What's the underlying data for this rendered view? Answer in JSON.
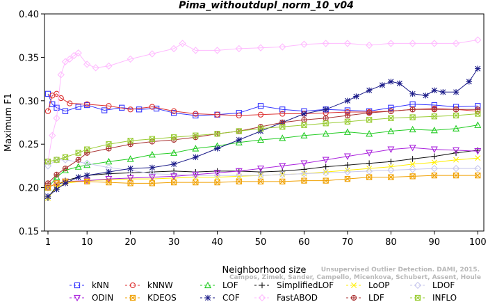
{
  "chart_data": {
    "type": "line",
    "title": "Pima_withoutdupl_norm_10_v04",
    "xlabel": "Neighborhood size",
    "ylabel": "Maximum F1",
    "xlim": [
      1,
      100
    ],
    "ylim": [
      0.15,
      0.4
    ],
    "x_ticks": [
      1,
      10,
      20,
      30,
      40,
      50,
      60,
      70,
      80,
      90,
      100
    ],
    "y_ticks": [
      0.15,
      0.2,
      0.25,
      0.3,
      0.35,
      0.4
    ],
    "x_tick_labels": [
      "1",
      "10",
      "20",
      "30",
      "40",
      "50",
      "60",
      "70",
      "80",
      "90",
      "100"
    ],
    "y_tick_labels": [
      "0.15",
      "0.20",
      "0.25",
      "0.30",
      "0.35",
      "0.40"
    ],
    "legend_position": "bottom",
    "watermark_lines": [
      "Unsupervised Outlier Detection. DAMI, 2015.",
      "Campos, Zimek, Sander, Campello, Micenkova, Schubert, Assent, Houle"
    ],
    "series": [
      {
        "name": "kNN",
        "color": "#3333ff",
        "marker": "square",
        "x": [
          1,
          2,
          3,
          5,
          8,
          10,
          14,
          18,
          22,
          26,
          30,
          35,
          40,
          45,
          50,
          55,
          60,
          65,
          70,
          75,
          80,
          85,
          90,
          95,
          100
        ],
        "y": [
          0.308,
          0.296,
          0.292,
          0.288,
          0.293,
          0.295,
          0.289,
          0.292,
          0.29,
          0.291,
          0.286,
          0.283,
          0.284,
          0.286,
          0.294,
          0.29,
          0.288,
          0.29,
          0.289,
          0.288,
          0.292,
          0.296,
          0.295,
          0.293,
          0.294
        ]
      },
      {
        "name": "kNNW",
        "color": "#dd3333",
        "marker": "circle",
        "x": [
          1,
          2,
          3,
          4,
          6,
          10,
          15,
          20,
          25,
          30,
          35,
          40,
          45,
          50,
          55,
          60,
          65,
          70,
          75,
          80,
          85,
          90,
          95,
          100
        ],
        "y": [
          0.288,
          0.306,
          0.308,
          0.303,
          0.297,
          0.296,
          0.294,
          0.29,
          0.293,
          0.288,
          0.285,
          0.284,
          0.283,
          0.284,
          0.285,
          0.285,
          0.286,
          0.287,
          0.287,
          0.288,
          0.29,
          0.291,
          0.29,
          0.288
        ]
      },
      {
        "name": "LOF",
        "color": "#22cc22",
        "marker": "triangle-up",
        "x": [
          1,
          3,
          5,
          8,
          10,
          15,
          20,
          25,
          30,
          35,
          40,
          45,
          50,
          55,
          60,
          65,
          70,
          75,
          80,
          85,
          90,
          95,
          100
        ],
        "y": [
          0.2,
          0.212,
          0.22,
          0.224,
          0.226,
          0.23,
          0.233,
          0.238,
          0.24,
          0.245,
          0.248,
          0.252,
          0.255,
          0.257,
          0.26,
          0.262,
          0.264,
          0.262,
          0.265,
          0.267,
          0.266,
          0.268,
          0.272
        ]
      },
      {
        "name": "SimplifiedLOF",
        "color": "#111111",
        "marker": "plus",
        "x": [
          1,
          3,
          5,
          8,
          10,
          15,
          20,
          25,
          30,
          35,
          40,
          45,
          50,
          55,
          60,
          65,
          70,
          75,
          80,
          85,
          90,
          95,
          100
        ],
        "y": [
          0.188,
          0.202,
          0.208,
          0.212,
          0.214,
          0.216,
          0.217,
          0.218,
          0.219,
          0.218,
          0.219,
          0.219,
          0.218,
          0.219,
          0.221,
          0.224,
          0.226,
          0.228,
          0.23,
          0.233,
          0.236,
          0.24,
          0.243
        ]
      },
      {
        "name": "LoOP",
        "color": "#ffee00",
        "marker": "cross",
        "x": [
          1,
          3,
          5,
          10,
          15,
          20,
          25,
          30,
          35,
          40,
          45,
          50,
          55,
          60,
          65,
          70,
          75,
          80,
          85,
          90,
          95,
          100
        ],
        "y": [
          0.188,
          0.2,
          0.205,
          0.208,
          0.209,
          0.21,
          0.21,
          0.211,
          0.212,
          0.212,
          0.213,
          0.214,
          0.215,
          0.216,
          0.218,
          0.22,
          0.222,
          0.224,
          0.227,
          0.229,
          0.232,
          0.234
        ]
      },
      {
        "name": "LDOF",
        "color": "#c8c8ee",
        "marker": "diamond",
        "x": [
          1,
          3,
          5,
          10,
          15,
          20,
          25,
          30,
          35,
          40,
          45,
          50,
          55,
          60,
          65,
          70,
          75,
          80,
          85,
          90,
          95,
          100
        ],
        "y": [
          0.225,
          0.232,
          0.232,
          0.228,
          0.223,
          0.22,
          0.216,
          0.215,
          0.214,
          0.214,
          0.214,
          0.214,
          0.215,
          0.216,
          0.217,
          0.218,
          0.219,
          0.22,
          0.221,
          0.222,
          0.222,
          0.222
        ]
      },
      {
        "name": "ODIN",
        "color": "#aa22dd",
        "marker": "triangle-down",
        "x": [
          1,
          3,
          5,
          10,
          15,
          20,
          25,
          30,
          35,
          40,
          45,
          50,
          55,
          60,
          65,
          70,
          75,
          80,
          85,
          90,
          95,
          100
        ],
        "y": [
          0.2,
          0.205,
          0.207,
          0.208,
          0.21,
          0.211,
          0.212,
          0.213,
          0.215,
          0.217,
          0.219,
          0.222,
          0.225,
          0.228,
          0.232,
          0.236,
          0.24,
          0.244,
          0.246,
          0.244,
          0.243,
          0.242
        ]
      },
      {
        "name": "KDEOS",
        "color": "#f0a000",
        "marker": "square-x",
        "x": [
          1,
          3,
          5,
          10,
          15,
          20,
          25,
          30,
          35,
          40,
          45,
          50,
          55,
          60,
          65,
          70,
          75,
          80,
          85,
          90,
          95,
          100
        ],
        "y": [
          0.2,
          0.205,
          0.207,
          0.207,
          0.206,
          0.205,
          0.205,
          0.206,
          0.206,
          0.206,
          0.207,
          0.207,
          0.207,
          0.208,
          0.208,
          0.21,
          0.212,
          0.212,
          0.213,
          0.214,
          0.214,
          0.214
        ]
      },
      {
        "name": "COF",
        "color": "#1a1a88",
        "marker": "asterisk",
        "x": [
          1,
          3,
          5,
          8,
          10,
          15,
          20,
          25,
          30,
          35,
          40,
          45,
          50,
          55,
          60,
          65,
          70,
          72,
          75,
          78,
          80,
          82,
          85,
          88,
          90,
          92,
          95,
          98,
          100
        ],
        "y": [
          0.19,
          0.198,
          0.205,
          0.212,
          0.214,
          0.218,
          0.222,
          0.223,
          0.227,
          0.235,
          0.245,
          0.255,
          0.265,
          0.275,
          0.285,
          0.29,
          0.3,
          0.305,
          0.312,
          0.318,
          0.322,
          0.32,
          0.308,
          0.306,
          0.312,
          0.31,
          0.31,
          0.322,
          0.337
        ]
      },
      {
        "name": "FastABOD",
        "color": "#ffbbff",
        "marker": "diamond",
        "x": [
          1,
          2,
          3,
          4,
          5,
          6,
          7,
          8,
          10,
          12,
          15,
          20,
          25,
          30,
          32,
          35,
          40,
          45,
          50,
          55,
          60,
          65,
          70,
          75,
          80,
          85,
          90,
          95,
          100
        ],
        "y": [
          0.23,
          0.26,
          0.28,
          0.33,
          0.345,
          0.348,
          0.352,
          0.355,
          0.342,
          0.338,
          0.34,
          0.348,
          0.354,
          0.36,
          0.366,
          0.358,
          0.358,
          0.36,
          0.361,
          0.362,
          0.365,
          0.366,
          0.366,
          0.364,
          0.366,
          0.366,
          0.366,
          0.366,
          0.37
        ]
      },
      {
        "name": "LDF",
        "color": "#aa3333",
        "marker": "circle-plus",
        "x": [
          1,
          3,
          5,
          8,
          10,
          15,
          20,
          25,
          30,
          35,
          40,
          45,
          50,
          55,
          60,
          65,
          70,
          75,
          80,
          85,
          90,
          95,
          100
        ],
        "y": [
          0.205,
          0.215,
          0.222,
          0.232,
          0.24,
          0.245,
          0.25,
          0.253,
          0.255,
          0.258,
          0.262,
          0.265,
          0.27,
          0.275,
          0.278,
          0.28,
          0.283,
          0.286,
          0.288,
          0.29,
          0.29,
          0.29,
          0.29
        ]
      },
      {
        "name": "INFLO",
        "color": "#99cc33",
        "marker": "square-x",
        "x": [
          1,
          3,
          5,
          8,
          10,
          15,
          20,
          25,
          30,
          35,
          40,
          45,
          50,
          55,
          60,
          65,
          70,
          75,
          80,
          85,
          90,
          95,
          100
        ],
        "y": [
          0.23,
          0.232,
          0.235,
          0.24,
          0.244,
          0.25,
          0.254,
          0.256,
          0.258,
          0.26,
          0.262,
          0.265,
          0.268,
          0.27,
          0.272,
          0.274,
          0.276,
          0.278,
          0.28,
          0.281,
          0.282,
          0.283,
          0.285
        ]
      }
    ]
  }
}
